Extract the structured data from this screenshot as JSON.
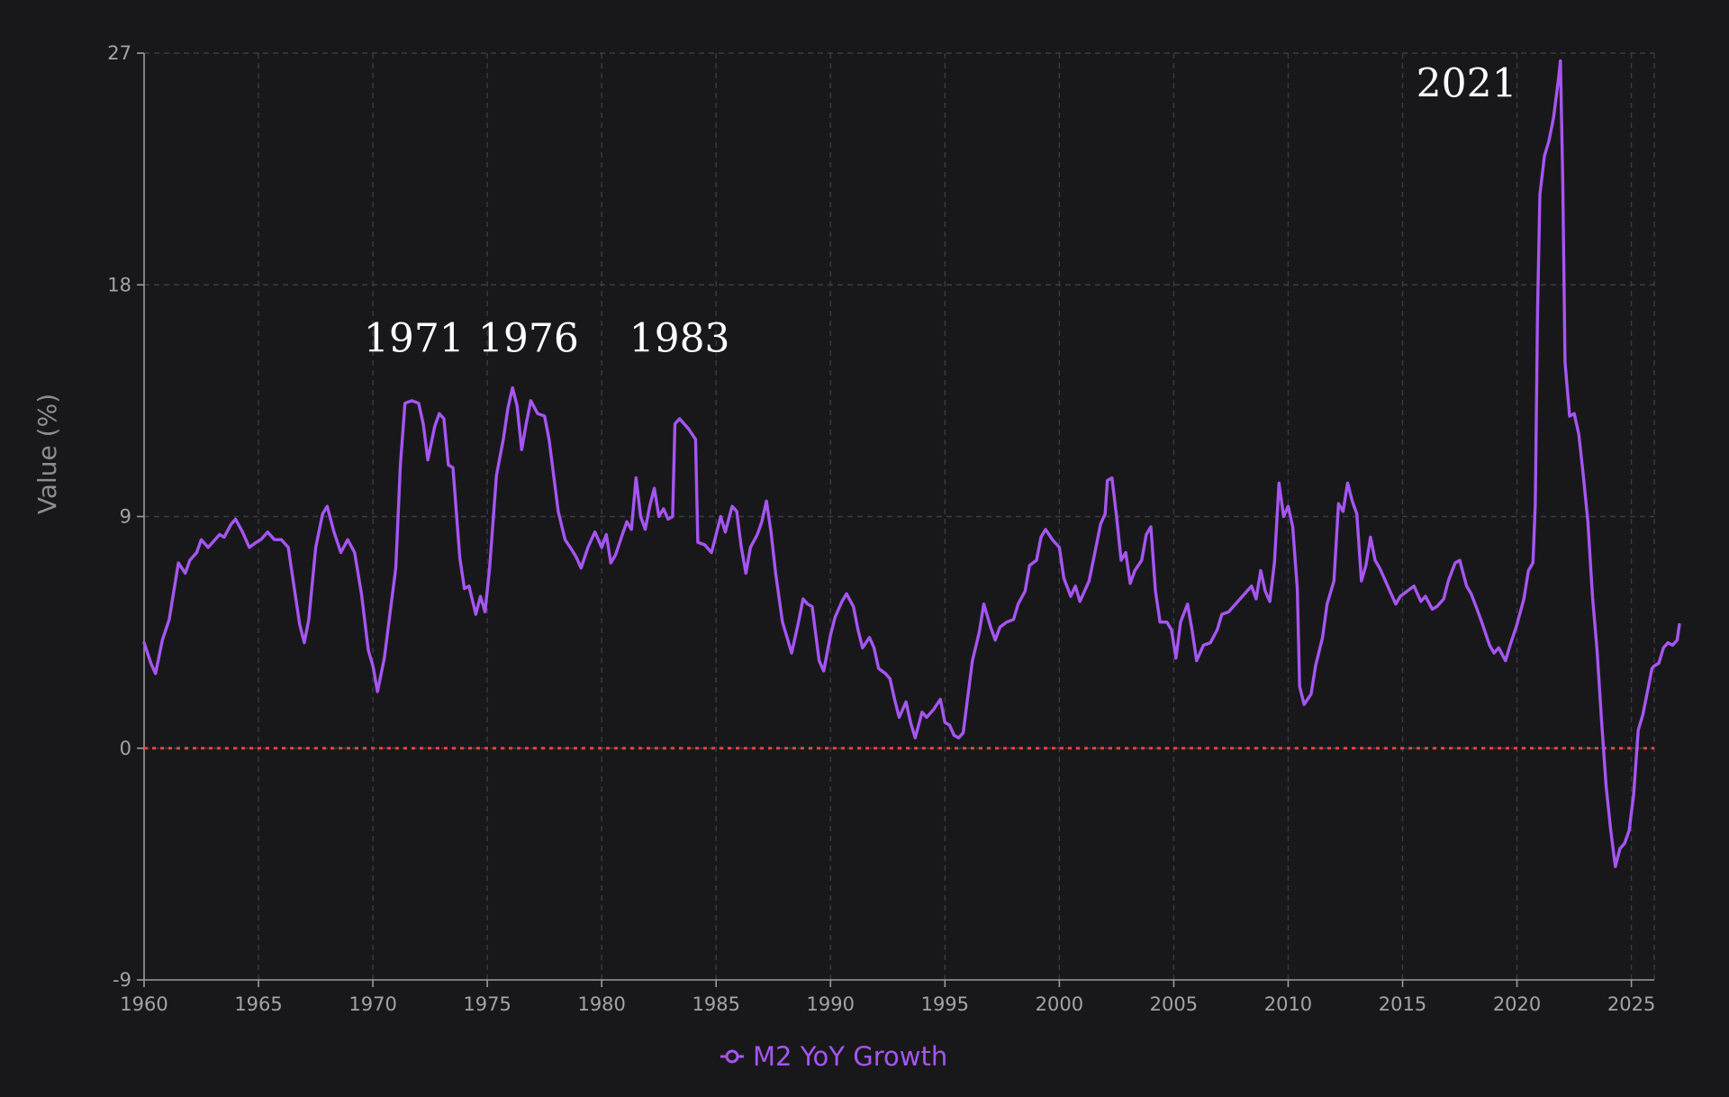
{
  "chart_data": {
    "type": "line",
    "title": "",
    "xlabel": "",
    "ylabel": "Value (%)",
    "xlim": [
      1960,
      2026
    ],
    "ylim": [
      -9,
      27
    ],
    "x_ticks": [
      1960,
      1965,
      1970,
      1975,
      1980,
      1985,
      1990,
      1995,
      2000,
      2005,
      2010,
      2015,
      2020,
      2025
    ],
    "y_ticks": [
      -9,
      0,
      9,
      18,
      27
    ],
    "grid": true,
    "legend_position": "bottom-center",
    "reference_line": {
      "y": 0,
      "color": "#e0443c",
      "style": "dotted"
    },
    "annotations": [
      {
        "text": "1971",
        "x": 1971.8,
        "y": 15.9
      },
      {
        "text": "1976",
        "x": 1976.8,
        "y": 15.9
      },
      {
        "text": "1983",
        "x": 1983.4,
        "y": 15.9
      },
      {
        "text": "2021",
        "x": 2017.8,
        "y": 25.8
      }
    ],
    "series": [
      {
        "name": "M2 YoY Growth",
        "color": "#a655f2",
        "points": [
          [
            1960.0,
            4.1
          ],
          [
            1960.3,
            3.3
          ],
          [
            1960.5,
            2.9
          ],
          [
            1960.8,
            4.2
          ],
          [
            1961.1,
            5.0
          ],
          [
            1961.3,
            6.1
          ],
          [
            1961.5,
            7.2
          ],
          [
            1961.8,
            6.8
          ],
          [
            1962.0,
            7.3
          ],
          [
            1962.3,
            7.6
          ],
          [
            1962.5,
            8.1
          ],
          [
            1962.8,
            7.8
          ],
          [
            1963.0,
            8.0
          ],
          [
            1963.3,
            8.3
          ],
          [
            1963.5,
            8.2
          ],
          [
            1963.8,
            8.7
          ],
          [
            1964.0,
            8.9
          ],
          [
            1964.3,
            8.4
          ],
          [
            1964.6,
            7.8
          ],
          [
            1964.9,
            8.0
          ],
          [
            1965.1,
            8.1
          ],
          [
            1965.4,
            8.4
          ],
          [
            1965.7,
            8.1
          ],
          [
            1966.0,
            8.1
          ],
          [
            1966.3,
            7.8
          ],
          [
            1966.6,
            6.0
          ],
          [
            1966.8,
            4.8
          ],
          [
            1967.0,
            4.1
          ],
          [
            1967.2,
            5.0
          ],
          [
            1967.5,
            7.8
          ],
          [
            1967.8,
            9.1
          ],
          [
            1968.0,
            9.4
          ],
          [
            1968.3,
            8.4
          ],
          [
            1968.6,
            7.6
          ],
          [
            1968.9,
            8.1
          ],
          [
            1969.2,
            7.6
          ],
          [
            1969.5,
            6.0
          ],
          [
            1969.8,
            3.8
          ],
          [
            1970.0,
            3.2
          ],
          [
            1970.2,
            2.2
          ],
          [
            1970.5,
            3.5
          ],
          [
            1970.8,
            5.6
          ],
          [
            1971.0,
            7.0
          ],
          [
            1971.2,
            11.0
          ],
          [
            1971.4,
            13.4
          ],
          [
            1971.7,
            13.5
          ],
          [
            1972.0,
            13.4
          ],
          [
            1972.2,
            12.6
          ],
          [
            1972.4,
            11.2
          ],
          [
            1972.7,
            12.5
          ],
          [
            1972.9,
            13.0
          ],
          [
            1973.1,
            12.8
          ],
          [
            1973.3,
            11.0
          ],
          [
            1973.5,
            10.9
          ],
          [
            1973.8,
            7.4
          ],
          [
            1974.0,
            6.2
          ],
          [
            1974.2,
            6.3
          ],
          [
            1974.5,
            5.2
          ],
          [
            1974.7,
            5.9
          ],
          [
            1974.9,
            5.3
          ],
          [
            1975.1,
            7.0
          ],
          [
            1975.4,
            10.6
          ],
          [
            1975.7,
            12.0
          ],
          [
            1975.9,
            13.2
          ],
          [
            1976.1,
            14.0
          ],
          [
            1976.3,
            13.3
          ],
          [
            1976.5,
            11.6
          ],
          [
            1976.7,
            12.6
          ],
          [
            1976.9,
            13.5
          ],
          [
            1977.2,
            13.0
          ],
          [
            1977.5,
            12.9
          ],
          [
            1977.7,
            12.0
          ],
          [
            1977.9,
            10.6
          ],
          [
            1978.1,
            9.2
          ],
          [
            1978.4,
            8.1
          ],
          [
            1978.7,
            7.7
          ],
          [
            1978.9,
            7.4
          ],
          [
            1979.1,
            7.0
          ],
          [
            1979.4,
            7.8
          ],
          [
            1979.7,
            8.4
          ],
          [
            1980.0,
            7.8
          ],
          [
            1980.2,
            8.3
          ],
          [
            1980.4,
            7.2
          ],
          [
            1980.6,
            7.5
          ],
          [
            1980.9,
            8.3
          ],
          [
            1981.1,
            8.8
          ],
          [
            1981.3,
            8.5
          ],
          [
            1981.5,
            10.5
          ],
          [
            1981.7,
            9.0
          ],
          [
            1981.9,
            8.5
          ],
          [
            1982.1,
            9.4
          ],
          [
            1982.3,
            10.1
          ],
          [
            1982.5,
            9.0
          ],
          [
            1982.7,
            9.3
          ],
          [
            1982.9,
            8.9
          ],
          [
            1983.1,
            9.0
          ],
          [
            1983.2,
            12.6
          ],
          [
            1983.4,
            12.8
          ],
          [
            1983.6,
            12.6
          ],
          [
            1983.8,
            12.4
          ],
          [
            1984.1,
            12.0
          ],
          [
            1984.2,
            8.0
          ],
          [
            1984.5,
            7.9
          ],
          [
            1984.8,
            7.6
          ],
          [
            1985.0,
            8.3
          ],
          [
            1985.2,
            9.0
          ],
          [
            1985.4,
            8.4
          ],
          [
            1985.7,
            9.4
          ],
          [
            1985.9,
            9.2
          ],
          [
            1986.1,
            7.8
          ],
          [
            1986.3,
            6.8
          ],
          [
            1986.5,
            7.8
          ],
          [
            1986.8,
            8.3
          ],
          [
            1987.0,
            8.8
          ],
          [
            1987.2,
            9.6
          ],
          [
            1987.4,
            8.4
          ],
          [
            1987.6,
            6.8
          ],
          [
            1987.9,
            4.9
          ],
          [
            1988.1,
            4.3
          ],
          [
            1988.3,
            3.7
          ],
          [
            1988.6,
            4.9
          ],
          [
            1988.8,
            5.8
          ],
          [
            1989.0,
            5.6
          ],
          [
            1989.2,
            5.5
          ],
          [
            1989.5,
            3.4
          ],
          [
            1989.7,
            3.0
          ],
          [
            1990.0,
            4.4
          ],
          [
            1990.2,
            5.1
          ],
          [
            1990.5,
            5.7
          ],
          [
            1990.7,
            6.0
          ],
          [
            1991.0,
            5.5
          ],
          [
            1991.2,
            4.6
          ],
          [
            1991.4,
            3.9
          ],
          [
            1991.7,
            4.3
          ],
          [
            1991.9,
            3.9
          ],
          [
            1992.1,
            3.1
          ],
          [
            1992.4,
            2.9
          ],
          [
            1992.6,
            2.7
          ],
          [
            1992.8,
            1.9
          ],
          [
            1993.0,
            1.2
          ],
          [
            1993.3,
            1.8
          ],
          [
            1993.5,
            1.0
          ],
          [
            1993.7,
            0.4
          ],
          [
            1994.0,
            1.4
          ],
          [
            1994.2,
            1.2
          ],
          [
            1994.5,
            1.5
          ],
          [
            1994.8,
            1.9
          ],
          [
            1995.0,
            1.0
          ],
          [
            1995.2,
            0.9
          ],
          [
            1995.4,
            0.5
          ],
          [
            1995.6,
            0.4
          ],
          [
            1995.8,
            0.6
          ],
          [
            1996.0,
            2.0
          ],
          [
            1996.2,
            3.4
          ],
          [
            1996.5,
            4.5
          ],
          [
            1996.7,
            5.6
          ],
          [
            1997.0,
            4.7
          ],
          [
            1997.2,
            4.2
          ],
          [
            1997.4,
            4.7
          ],
          [
            1997.7,
            4.9
          ],
          [
            1998.0,
            5.0
          ],
          [
            1998.2,
            5.6
          ],
          [
            1998.5,
            6.1
          ],
          [
            1998.7,
            7.1
          ],
          [
            1999.0,
            7.3
          ],
          [
            1999.2,
            8.2
          ],
          [
            1999.4,
            8.5
          ],
          [
            1999.7,
            8.1
          ],
          [
            2000.0,
            7.8
          ],
          [
            2000.2,
            6.6
          ],
          [
            2000.5,
            5.9
          ],
          [
            2000.7,
            6.3
          ],
          [
            2000.9,
            5.7
          ],
          [
            2001.1,
            6.1
          ],
          [
            2001.3,
            6.5
          ],
          [
            2001.6,
            7.8
          ],
          [
            2001.8,
            8.7
          ],
          [
            2002.0,
            9.1
          ],
          [
            2002.1,
            10.4
          ],
          [
            2002.3,
            10.5
          ],
          [
            2002.5,
            9.0
          ],
          [
            2002.7,
            7.3
          ],
          [
            2002.9,
            7.6
          ],
          [
            2003.1,
            6.4
          ],
          [
            2003.3,
            6.9
          ],
          [
            2003.6,
            7.3
          ],
          [
            2003.8,
            8.3
          ],
          [
            2004.0,
            8.6
          ],
          [
            2004.2,
            6.1
          ],
          [
            2004.4,
            4.9
          ],
          [
            2004.7,
            4.9
          ],
          [
            2004.9,
            4.6
          ],
          [
            2005.1,
            3.5
          ],
          [
            2005.3,
            4.9
          ],
          [
            2005.6,
            5.6
          ],
          [
            2005.8,
            4.6
          ],
          [
            2006.0,
            3.4
          ],
          [
            2006.3,
            4.0
          ],
          [
            2006.6,
            4.1
          ],
          [
            2006.9,
            4.6
          ],
          [
            2007.1,
            5.2
          ],
          [
            2007.4,
            5.3
          ],
          [
            2007.7,
            5.6
          ],
          [
            2008.0,
            5.9
          ],
          [
            2008.2,
            6.1
          ],
          [
            2008.4,
            6.3
          ],
          [
            2008.6,
            5.8
          ],
          [
            2008.8,
            6.9
          ],
          [
            2009.0,
            6.1
          ],
          [
            2009.2,
            5.7
          ],
          [
            2009.4,
            7.2
          ],
          [
            2009.6,
            10.3
          ],
          [
            2009.8,
            9.0
          ],
          [
            2010.0,
            9.4
          ],
          [
            2010.2,
            8.6
          ],
          [
            2010.4,
            6.2
          ],
          [
            2010.5,
            2.4
          ],
          [
            2010.7,
            1.7
          ],
          [
            2011.0,
            2.1
          ],
          [
            2011.2,
            3.2
          ],
          [
            2011.5,
            4.3
          ],
          [
            2011.7,
            5.6
          ],
          [
            2012.0,
            6.5
          ],
          [
            2012.2,
            9.5
          ],
          [
            2012.4,
            9.2
          ],
          [
            2012.6,
            10.3
          ],
          [
            2012.8,
            9.6
          ],
          [
            2013.0,
            9.1
          ],
          [
            2013.2,
            6.5
          ],
          [
            2013.4,
            7.1
          ],
          [
            2013.6,
            8.2
          ],
          [
            2013.8,
            7.3
          ],
          [
            2014.0,
            7.0
          ],
          [
            2014.3,
            6.4
          ],
          [
            2014.5,
            6.0
          ],
          [
            2014.7,
            5.6
          ],
          [
            2014.9,
            5.9
          ],
          [
            2015.2,
            6.1
          ],
          [
            2015.5,
            6.3
          ],
          [
            2015.8,
            5.7
          ],
          [
            2016.0,
            5.9
          ],
          [
            2016.3,
            5.4
          ],
          [
            2016.5,
            5.5
          ],
          [
            2016.8,
            5.8
          ],
          [
            2017.0,
            6.5
          ],
          [
            2017.3,
            7.2
          ],
          [
            2017.5,
            7.3
          ],
          [
            2017.8,
            6.3
          ],
          [
            2018.0,
            6.0
          ],
          [
            2018.3,
            5.3
          ],
          [
            2018.5,
            4.8
          ],
          [
            2018.8,
            4.0
          ],
          [
            2019.0,
            3.7
          ],
          [
            2019.2,
            3.9
          ],
          [
            2019.5,
            3.4
          ],
          [
            2019.7,
            4.0
          ],
          [
            2020.0,
            4.8
          ],
          [
            2020.3,
            5.8
          ],
          [
            2020.5,
            6.9
          ],
          [
            2020.7,
            7.2
          ],
          [
            2020.8,
            9.5
          ],
          [
            2020.9,
            17.0
          ],
          [
            2021.0,
            21.5
          ],
          [
            2021.2,
            23.0
          ],
          [
            2021.4,
            23.6
          ],
          [
            2021.6,
            24.5
          ],
          [
            2021.8,
            25.9
          ],
          [
            2021.9,
            26.7
          ],
          [
            2022.0,
            22.0
          ],
          [
            2022.1,
            15.0
          ],
          [
            2022.3,
            12.9
          ],
          [
            2022.5,
            13.0
          ],
          [
            2022.7,
            12.2
          ],
          [
            2022.9,
            10.6
          ],
          [
            2023.1,
            8.8
          ],
          [
            2023.3,
            5.9
          ],
          [
            2023.5,
            3.8
          ],
          [
            2023.7,
            1.0
          ],
          [
            2023.9,
            -1.5
          ],
          [
            2024.1,
            -3.2
          ],
          [
            2024.3,
            -4.6
          ],
          [
            2024.5,
            -3.9
          ],
          [
            2024.7,
            -3.7
          ],
          [
            2024.9,
            -3.2
          ],
          [
            2025.1,
            -1.8
          ],
          [
            2025.3,
            0.7
          ],
          [
            2025.5,
            1.3
          ],
          [
            2025.7,
            2.2
          ],
          [
            2025.9,
            3.1
          ],
          [
            2026.0,
            3.2
          ],
          [
            2026.2,
            3.3
          ],
          [
            2026.4,
            3.9
          ],
          [
            2026.6,
            4.1
          ],
          [
            2026.8,
            4.0
          ],
          [
            2027.0,
            4.2
          ],
          [
            2027.1,
            4.8
          ]
        ]
      }
    ]
  }
}
